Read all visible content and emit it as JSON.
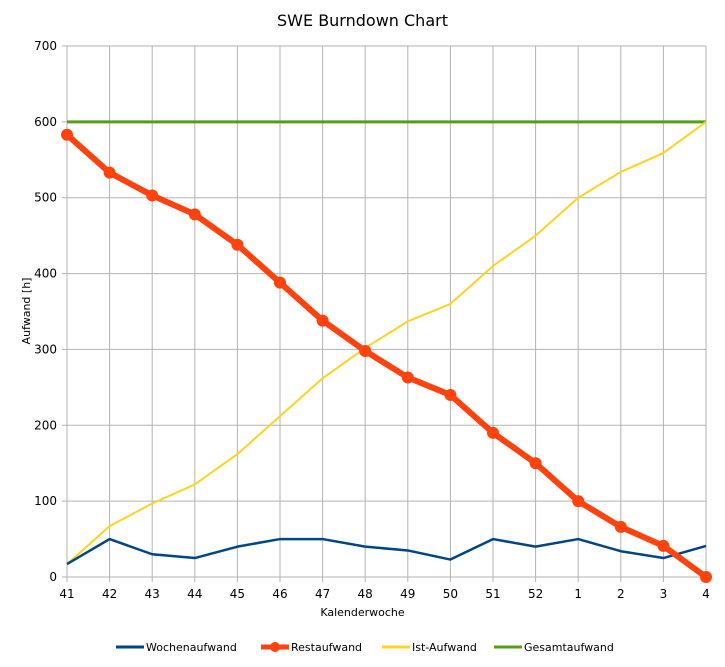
{
  "chart_data": {
    "type": "line",
    "title": "SWE Burndown  Chart",
    "xlabel": "Kalenderwoche",
    "ylabel": "Aufwand [h]",
    "ylim": [
      0,
      700
    ],
    "yticks": [
      "0",
      "100",
      "200",
      "300",
      "400",
      "500",
      "600",
      "700"
    ],
    "categories": [
      "41",
      "42",
      "43",
      "44",
      "45",
      "46",
      "47",
      "48",
      "49",
      "50",
      "51",
      "52",
      "1",
      "2",
      "3",
      "4"
    ],
    "grid": true,
    "legend_position": "bottom",
    "series": [
      {
        "name": "Wochenaufwand",
        "color": "#004586",
        "values": [
          17,
          50,
          30,
          25,
          40,
          50,
          50,
          40,
          35,
          23,
          50,
          40,
          50,
          34,
          25,
          41
        ]
      },
      {
        "name": "Restaufwand",
        "color": "#ff420e",
        "markers": true,
        "values": [
          583,
          533,
          503,
          478,
          438,
          388,
          338,
          298,
          263,
          240,
          190,
          150,
          100,
          66,
          41,
          0
        ]
      },
      {
        "name": "Ist-Aufwand",
        "color": "#ffd320",
        "values": [
          17,
          67,
          97,
          122,
          162,
          212,
          262,
          302,
          337,
          360,
          410,
          450,
          500,
          534,
          559,
          600
        ]
      },
      {
        "name": "Gesamtaufwand",
        "color": "#579d1c",
        "values": [
          600,
          600,
          600,
          600,
          600,
          600,
          600,
          600,
          600,
          600,
          600,
          600,
          600,
          600,
          600,
          600
        ]
      }
    ]
  }
}
